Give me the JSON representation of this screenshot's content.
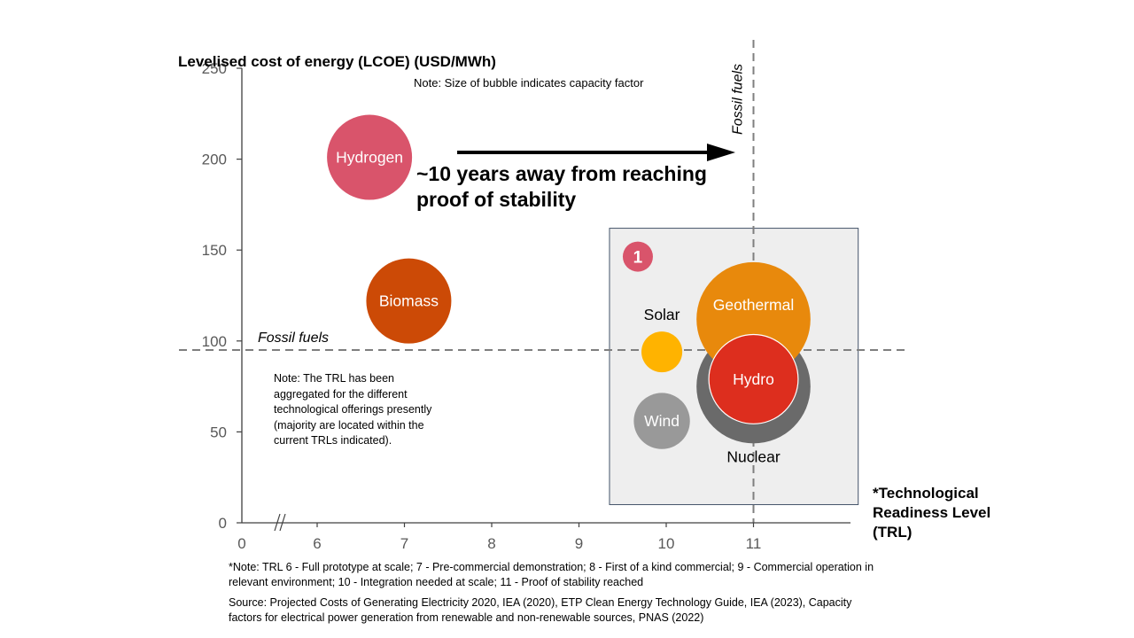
{
  "chart_data": {
    "type": "scatter",
    "subtype": "bubble",
    "ylabel": "Levelised cost of energy (LCOE) (USD/MWh)",
    "xlabel": "*Technological Readiness Level (TRL)",
    "ylim": [
      0,
      250
    ],
    "yticks": [
      0,
      50,
      100,
      150,
      200,
      250
    ],
    "xticks": [
      "0",
      "6",
      "7",
      "8",
      "9",
      "10",
      "11"
    ],
    "x_axis_break": "after 0 (//)",
    "grid": false,
    "note_bubble_size": "Note: Size of bubble indicates capacity factor",
    "note_trl": "Note: The TRL has been aggregated for the different technological offerings presently (majority are located within the current TRLs indicated).",
    "reference_lines": [
      {
        "orientation": "horizontal",
        "value": 95,
        "label": "Fossil fuels",
        "style": "dashed"
      },
      {
        "orientation": "vertical",
        "value": 11,
        "label": "Fossil fuels",
        "style": "dashed"
      }
    ],
    "annotation_arrow": {
      "from_x": 7.3,
      "to_x": 10.8,
      "y": 200,
      "text": "~10 years away from reaching proof of stability"
    },
    "highlight_box": {
      "x_range": [
        9.35,
        12.2
      ],
      "y_range": [
        10,
        162
      ],
      "badge": "1"
    },
    "series": [
      {
        "name": "Hydrogen",
        "x": 6.6,
        "y": 201,
        "size_rel": 1.0,
        "color": "#d9546b",
        "label_inside": true
      },
      {
        "name": "Biomass",
        "x": 7.05,
        "y": 122,
        "size_rel": 1.0,
        "color": "#cc4a06",
        "label_inside": true
      },
      {
        "name": "Solar",
        "x": 9.95,
        "y": 94,
        "size_rel": 0.48,
        "color": "#ffb300",
        "label_inside": false
      },
      {
        "name": "Wind",
        "x": 9.95,
        "y": 56,
        "size_rel": 0.66,
        "color": "#999999",
        "label_inside": true
      },
      {
        "name": "Nuclear",
        "x": 11,
        "y": 75,
        "size_rel": 1.34,
        "color": "#6a6a6a",
        "label_inside": false
      },
      {
        "name": "Geothermal",
        "x": 11,
        "y": 112,
        "size_rel": 1.34,
        "color": "#e8890c",
        "label_inside": true
      },
      {
        "name": "Hydro",
        "x": 11,
        "y": 79,
        "size_rel": 1.05,
        "color": "#dd2e1e",
        "label_inside": true
      }
    ]
  },
  "footnotes": {
    "trl_definitions": "*Note: TRL 6 - Full prototype at scale; 7 - Pre-commercial demonstration; 8 - First of a kind commercial; 9 - Commercial operation in relevant environment; 10 - Integration needed at scale; 11 - Proof of stability reached",
    "source": "Source: Projected Costs of Generating Electricity 2020, IEA (2020), ETP Clean Energy Technology Guide, IEA (2023), Capacity factors for electrical power generation from renewable and non-renewable sources, PNAS (2022)"
  },
  "colors": {
    "axis": "#404040",
    "tick_label": "#595959",
    "dashed_line": "#7f7f7f",
    "box_fill": "#eeeeee",
    "box_border": "#44546a",
    "badge": "#d9546b"
  }
}
